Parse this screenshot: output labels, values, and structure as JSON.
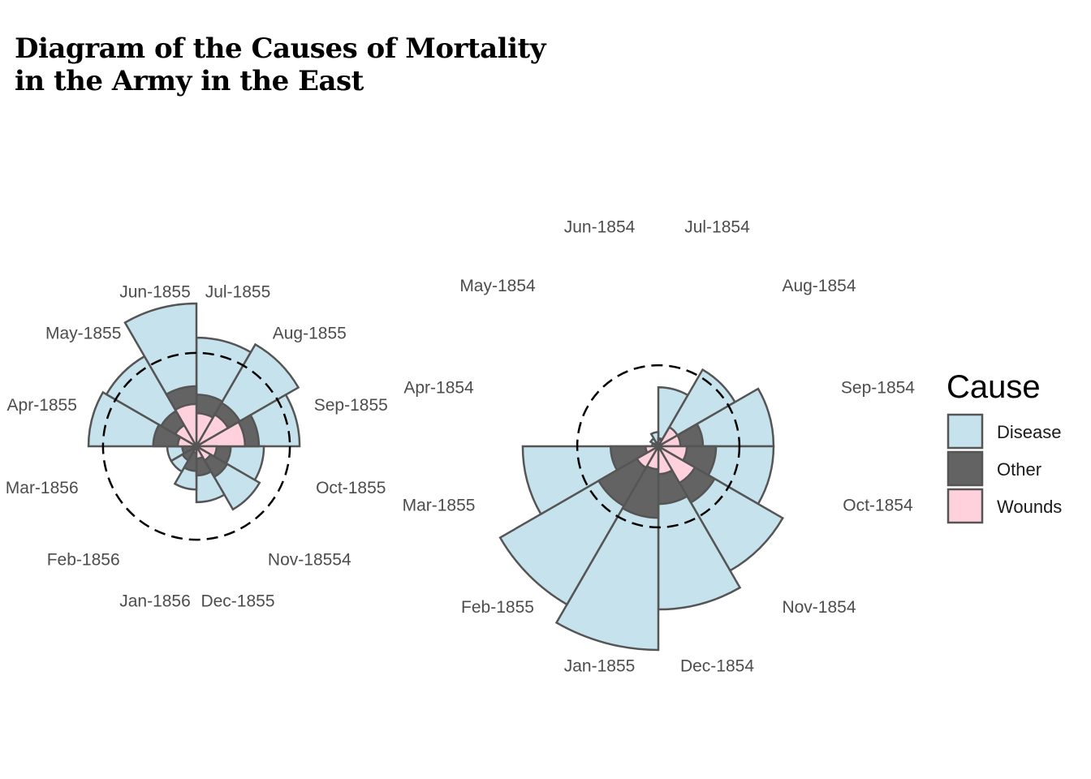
{
  "title": {
    "line1": "Diagram of the Causes of Mortality",
    "line2": "in the Army in the East"
  },
  "legend": {
    "title": "Cause",
    "items": [
      {
        "label": "Disease",
        "color": "#c6e2ec"
      },
      {
        "label": "Other",
        "color": "#636363"
      },
      {
        "label": "Wounds",
        "color": "#ffd1dc"
      }
    ]
  },
  "chart_data": [
    {
      "type": "polar-area",
      "panel": "left",
      "months": [
        "Jul-1855",
        "Aug-1855",
        "Sep-1855",
        "Oct-1855",
        "Nov-18554",
        "Dec-1855",
        "Jan-1856",
        "Feb-1856",
        "Mar-1856",
        "Apr-1855",
        "May-1855",
        "Jun-1855"
      ],
      "series": [
        {
          "name": "Disease",
          "values": [
            291,
            341,
            262,
            112,
            131,
            77,
            46,
            21,
            21,
            287,
            266,
            503
          ]
        },
        {
          "name": "Other",
          "values": [
            66,
            62,
            96,
            29,
            31,
            21,
            15,
            6.5,
            5,
            46,
            41,
            89
          ]
        },
        {
          "name": "Wounds",
          "values": [
            27,
            33,
            58,
            10,
            6.5,
            3.7,
            1,
            0.4,
            0.4,
            8.6,
            14.6,
            44
          ]
        }
      ],
      "reference_circle": 215,
      "start": "top",
      "direction": "clockwise"
    },
    {
      "type": "polar-area",
      "panel": "right",
      "months": [
        "Jul-1854",
        "Aug-1854",
        "Sep-1854",
        "Oct-1854",
        "Nov-1854",
        "Dec-1854",
        "Jan-1855",
        "Feb-1855",
        "Mar-1855",
        "Apr-1854",
        "May-1854",
        "Jun-1854"
      ],
      "series": [
        {
          "name": "Disease",
          "values": [
            86,
            193,
            327,
            327,
            508,
            656,
            1022,
            822,
            453,
            1,
            2,
            5
          ]
        },
        {
          "name": "Other",
          "values": [
            1.6,
            6.5,
            49,
            82,
            104,
            82,
            126,
            117,
            56,
            0.3,
            0.4,
            0.4
          ]
        },
        {
          "name": "Wounds",
          "values": [
            1,
            12,
            12,
            20,
            44,
            19,
            13,
            15,
            4,
            0,
            0,
            0
          ]
        }
      ],
      "reference_circle": 162,
      "start": "top",
      "direction": "clockwise"
    }
  ]
}
